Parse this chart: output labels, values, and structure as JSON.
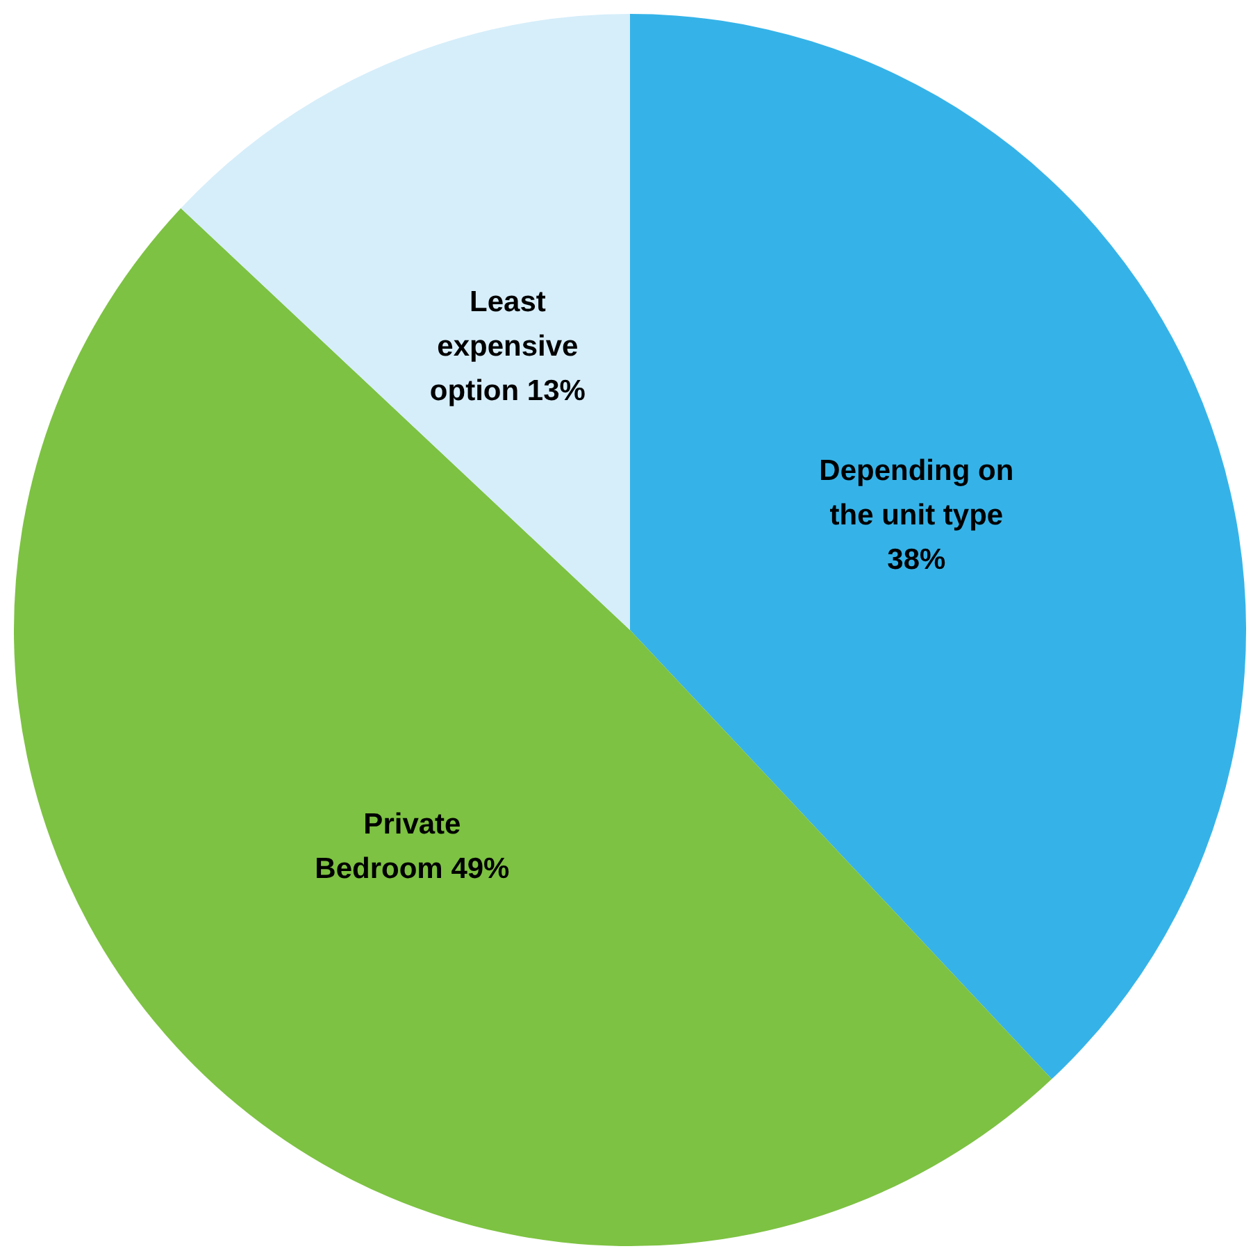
{
  "chart_data": {
    "type": "pie",
    "categories": [
      "Depending on the unit type",
      "Private Bedroom",
      "Least expensive option"
    ],
    "values": [
      38,
      49,
      13
    ],
    "colors": [
      "#35b3e8",
      "#7dc242",
      "#d6eefa"
    ],
    "value_labels": [
      "38%",
      "49%",
      "13%"
    ],
    "legend": false
  }
}
